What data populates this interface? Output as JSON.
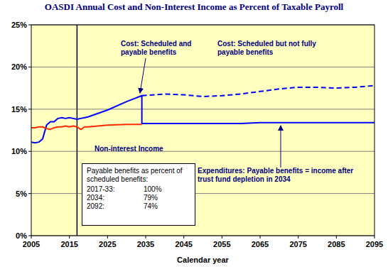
{
  "chart_data": {
    "type": "line",
    "title": "OASDI Annual Cost and Non-Interest Income as Percent of Taxable Payroll",
    "x_label": "Calendar year",
    "x": [
      2005,
      2006,
      2007,
      2008,
      2009,
      2010,
      2011,
      2012,
      2013,
      2014,
      2015,
      2016,
      2017,
      2018,
      2019,
      2020,
      2025,
      2030,
      2034,
      2034,
      2040,
      2045,
      2050,
      2055,
      2060,
      2065,
      2070,
      2075,
      2080,
      2085,
      2090,
      2095
    ],
    "series": [
      {
        "name": "Cost: Scheduled and payable benefits",
        "color": "#0000ff",
        "line_style": "solid",
        "values": [
          11.1,
          11.0,
          11.1,
          11.5,
          13.1,
          13.5,
          13.5,
          13.9,
          14.0,
          13.9,
          14.0,
          13.9,
          13.8,
          13.9,
          14.0,
          14.1,
          14.9,
          15.9,
          16.6,
          13.3,
          13.3,
          13.3,
          13.3,
          13.3,
          13.3,
          13.4,
          13.4,
          13.4,
          13.4,
          13.4,
          13.4,
          13.4
        ]
      },
      {
        "name": "Cost: Scheduled but not fully payable benefits",
        "color": "#0000ff",
        "line_style": "dashed",
        "values": [
          null,
          null,
          null,
          null,
          null,
          null,
          null,
          null,
          null,
          null,
          null,
          null,
          null,
          null,
          null,
          null,
          null,
          null,
          null,
          16.6,
          16.8,
          16.7,
          16.5,
          16.6,
          16.8,
          17.1,
          17.4,
          17.6,
          17.6,
          17.5,
          17.6,
          17.8
        ]
      },
      {
        "name": "Non-interest Income",
        "color": "#ff2a00",
        "line_style": "solid",
        "values": [
          12.8,
          12.8,
          12.9,
          12.9,
          12.7,
          12.6,
          12.8,
          12.9,
          12.9,
          13.0,
          12.9,
          13.0,
          12.9,
          12.6,
          12.9,
          12.9,
          13.1,
          13.2,
          13.2,
          null,
          null,
          null,
          null,
          null,
          null,
          null,
          null,
          null,
          null,
          null,
          null,
          null
        ]
      }
    ],
    "xlim": [
      2005,
      2095
    ],
    "xticks": [
      2005,
      2015,
      2025,
      2035,
      2045,
      2055,
      2065,
      2075,
      2085,
      2095
    ],
    "ylim": [
      0,
      25
    ],
    "yticks": [
      {
        "value": 0,
        "label": "0%"
      },
      {
        "value": 5,
        "label": "5%"
      },
      {
        "value": 10,
        "label": "10%"
      },
      {
        "value": 15,
        "label": "15%"
      },
      {
        "value": 20,
        "label": "20%"
      },
      {
        "value": 25,
        "label": "25%"
      }
    ],
    "grid": true,
    "x_marker": 2017,
    "annotations": [
      "Expenditures: Payable benefits = income after trust fund depletion in 2034"
    ],
    "benefits_table": {
      "title": "Payable benefits as percent of scheduled benefits:",
      "rows": [
        [
          "2017-33:",
          "100%"
        ],
        [
          "2034:",
          "79%"
        ],
        [
          "2092:",
          "74%"
        ]
      ]
    }
  }
}
